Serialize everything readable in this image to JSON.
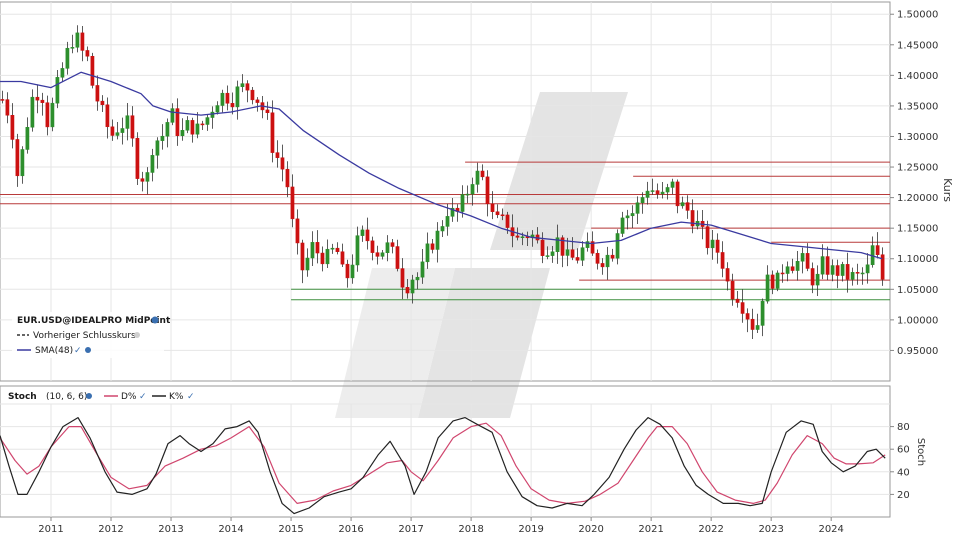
{
  "colors": {
    "up": "#2d8f2d",
    "down": "#cc1111",
    "sma": "#3a3aa0",
    "k": "#222222",
    "d": "#d0466e",
    "red_line": "#b83a3a",
    "green_line": "#3f8f3f",
    "grid": "#e6e6e6"
  },
  "chart_data": [
    {
      "type": "candlestick",
      "instrument": "EUR.USD@IDEALPRO MidPoint",
      "ylabel": "Kurs",
      "ylim": [
        0.9,
        1.52
      ],
      "yticks": [
        "1.50000",
        "1.45000",
        "1.40000",
        "1.35000",
        "1.30000",
        "1.25000",
        "1.20000",
        "1.15000",
        "1.10000",
        "1.05000",
        "1.00000",
        "0.95000"
      ],
      "x_years": [
        "2011",
        "2012",
        "2013",
        "2014",
        "2015",
        "2016",
        "2017",
        "2018",
        "2019",
        "2020",
        "2021",
        "2022",
        "2023",
        "2024"
      ],
      "x_range": [
        2010.15,
        2024.98
      ],
      "legend": [
        {
          "icon": "dash",
          "label": "Vorheriger Schlusskurs"
        },
        {
          "icon": "line",
          "label": "SMA(48)"
        }
      ],
      "close": [
        [
          2010.17,
          1.365
        ],
        [
          2010.33,
          1.33
        ],
        [
          2010.45,
          1.23
        ],
        [
          2010.55,
          1.29
        ],
        [
          2010.67,
          1.36
        ],
        [
          2010.83,
          1.38
        ],
        [
          2010.95,
          1.32
        ],
        [
          2011.1,
          1.38
        ],
        [
          2011.25,
          1.43
        ],
        [
          2011.4,
          1.47
        ],
        [
          2011.5,
          1.44
        ],
        [
          2011.6,
          1.43
        ],
        [
          2011.7,
          1.38
        ],
        [
          2011.85,
          1.34
        ],
        [
          2012.0,
          1.3
        ],
        [
          2012.15,
          1.32
        ],
        [
          2012.3,
          1.32
        ],
        [
          2012.45,
          1.24
        ],
        [
          2012.6,
          1.23
        ],
        [
          2012.7,
          1.29
        ],
        [
          2012.85,
          1.3
        ],
        [
          2013.0,
          1.34
        ],
        [
          2013.15,
          1.3
        ],
        [
          2013.3,
          1.32
        ],
        [
          2013.45,
          1.31
        ],
        [
          2013.6,
          1.33
        ],
        [
          2013.75,
          1.36
        ],
        [
          2013.9,
          1.37
        ],
        [
          2014.0,
          1.36
        ],
        [
          2014.15,
          1.38
        ],
        [
          2014.3,
          1.38
        ],
        [
          2014.45,
          1.36
        ],
        [
          2014.6,
          1.33
        ],
        [
          2014.7,
          1.28
        ],
        [
          2014.85,
          1.25
        ],
        [
          2014.97,
          1.21
        ],
        [
          2015.05,
          1.13
        ],
        [
          2015.2,
          1.08
        ],
        [
          2015.35,
          1.12
        ],
        [
          2015.45,
          1.11
        ],
        [
          2015.6,
          1.1
        ],
        [
          2015.75,
          1.12
        ],
        [
          2015.9,
          1.06
        ],
        [
          2016.0,
          1.09
        ],
        [
          2016.15,
          1.14
        ],
        [
          2016.3,
          1.13
        ],
        [
          2016.45,
          1.11
        ],
        [
          2016.6,
          1.12
        ],
        [
          2016.75,
          1.1
        ],
        [
          2016.9,
          1.05
        ],
        [
          2017.0,
          1.07
        ],
        [
          2017.15,
          1.07
        ],
        [
          2017.3,
          1.12
        ],
        [
          2017.45,
          1.14
        ],
        [
          2017.6,
          1.18
        ],
        [
          2017.75,
          1.17
        ],
        [
          2017.9,
          1.2
        ],
        [
          2018.05,
          1.24
        ],
        [
          2018.2,
          1.23
        ],
        [
          2018.35,
          1.17
        ],
        [
          2018.45,
          1.16
        ],
        [
          2018.6,
          1.16
        ],
        [
          2018.75,
          1.13
        ],
        [
          2018.9,
          1.14
        ],
        [
          2019.0,
          1.14
        ],
        [
          2019.15,
          1.12
        ],
        [
          2019.3,
          1.12
        ],
        [
          2019.45,
          1.13
        ],
        [
          2019.6,
          1.1
        ],
        [
          2019.75,
          1.1
        ],
        [
          2019.9,
          1.12
        ],
        [
          2020.05,
          1.1
        ],
        [
          2020.2,
          1.1
        ],
        [
          2020.35,
          1.11
        ],
        [
          2020.5,
          1.18
        ],
        [
          2020.65,
          1.17
        ],
        [
          2020.8,
          1.19
        ],
        [
          2020.95,
          1.22
        ],
        [
          2021.05,
          1.21
        ],
        [
          2021.2,
          1.2
        ],
        [
          2021.35,
          1.22
        ],
        [
          2021.45,
          1.19
        ],
        [
          2021.6,
          1.18
        ],
        [
          2021.75,
          1.16
        ],
        [
          2021.9,
          1.13
        ],
        [
          2022.0,
          1.12
        ],
        [
          2022.15,
          1.11
        ],
        [
          2022.3,
          1.05
        ],
        [
          2022.45,
          1.04
        ],
        [
          2022.55,
          1.02
        ],
        [
          2022.65,
          1.0
        ],
        [
          2022.75,
          0.98
        ],
        [
          2022.85,
          1.04
        ],
        [
          2022.97,
          1.07
        ],
        [
          2023.1,
          1.06
        ],
        [
          2023.25,
          1.1
        ],
        [
          2023.4,
          1.09
        ],
        [
          2023.5,
          1.1
        ],
        [
          2023.6,
          1.08
        ],
        [
          2023.75,
          1.06
        ],
        [
          2023.85,
          1.09
        ],
        [
          2024.0,
          1.08
        ],
        [
          2024.15,
          1.08
        ],
        [
          2024.3,
          1.07
        ],
        [
          2024.45,
          1.07
        ],
        [
          2024.6,
          1.08
        ],
        [
          2024.7,
          1.12
        ],
        [
          2024.8,
          1.09
        ],
        [
          2024.9,
          1.05
        ]
      ],
      "sma": [
        [
          2010.15,
          1.39
        ],
        [
          2010.5,
          1.39
        ],
        [
          2011.0,
          1.38
        ],
        [
          2011.5,
          1.405
        ],
        [
          2012.0,
          1.39
        ],
        [
          2012.5,
          1.37
        ],
        [
          2012.7,
          1.35
        ],
        [
          2013.0,
          1.34
        ],
        [
          2013.5,
          1.335
        ],
        [
          2014.0,
          1.34
        ],
        [
          2014.5,
          1.35
        ],
        [
          2014.8,
          1.345
        ],
        [
          2015.2,
          1.31
        ],
        [
          2015.8,
          1.27
        ],
        [
          2016.3,
          1.24
        ],
        [
          2016.8,
          1.215
        ],
        [
          2017.4,
          1.19
        ],
        [
          2018.0,
          1.17
        ],
        [
          2018.5,
          1.15
        ],
        [
          2019.0,
          1.135
        ],
        [
          2019.5,
          1.13
        ],
        [
          2020.0,
          1.125
        ],
        [
          2020.5,
          1.13
        ],
        [
          2021.0,
          1.15
        ],
        [
          2021.5,
          1.16
        ],
        [
          2022.0,
          1.155
        ],
        [
          2022.5,
          1.14
        ],
        [
          2023.0,
          1.125
        ],
        [
          2023.5,
          1.12
        ],
        [
          2024.0,
          1.115
        ],
        [
          2024.5,
          1.11
        ],
        [
          2024.85,
          1.1
        ]
      ],
      "hlines_red": [
        {
          "y": 1.258,
          "x0": 2017.9,
          "x1": 2024.98
        },
        {
          "y": 1.235,
          "x0": 2020.7,
          "x1": 2024.98
        },
        {
          "y": 1.205,
          "x0": 2010.15,
          "x1": 2024.98
        },
        {
          "y": 1.19,
          "x0": 2010.15,
          "x1": 2024.98
        },
        {
          "y": 1.15,
          "x0": 2020.0,
          "x1": 2024.98
        },
        {
          "y": 1.127,
          "x0": 2023.0,
          "x1": 2024.98
        },
        {
          "y": 1.065,
          "x0": 2019.8,
          "x1": 2024.98
        }
      ],
      "hlines_green": [
        {
          "y": 1.05,
          "x0": 2015.0,
          "x1": 2024.98
        },
        {
          "y": 1.033,
          "x0": 2015.0,
          "x1": 2024.98
        }
      ]
    },
    {
      "type": "line",
      "indicator": "Stoch",
      "params": "(10, 6, 6)",
      "ylabel": "Stoch",
      "ylim": [
        0,
        100
      ],
      "yticks": [
        "80",
        "60",
        "40",
        "20"
      ],
      "series": [
        {
          "name": "D%",
          "values": [
            [
              2010.15,
              70
            ],
            [
              2010.4,
              50
            ],
            [
              2010.6,
              38
            ],
            [
              2010.8,
              45
            ],
            [
              2011.0,
              62
            ],
            [
              2011.3,
              80
            ],
            [
              2011.5,
              80
            ],
            [
              2011.75,
              57
            ],
            [
              2012.0,
              35
            ],
            [
              2012.3,
              25
            ],
            [
              2012.6,
              28
            ],
            [
              2012.9,
              45
            ],
            [
              2013.2,
              52
            ],
            [
              2013.5,
              60
            ],
            [
              2013.75,
              63
            ],
            [
              2014.0,
              70
            ],
            [
              2014.3,
              80
            ],
            [
              2014.55,
              62
            ],
            [
              2014.8,
              30
            ],
            [
              2015.1,
              12
            ],
            [
              2015.4,
              15
            ],
            [
              2015.7,
              23
            ],
            [
              2016.0,
              28
            ],
            [
              2016.3,
              38
            ],
            [
              2016.6,
              48
            ],
            [
              2016.85,
              50
            ],
            [
              2017.0,
              40
            ],
            [
              2017.2,
              32
            ],
            [
              2017.45,
              50
            ],
            [
              2017.7,
              70
            ],
            [
              2018.0,
              80
            ],
            [
              2018.25,
              83
            ],
            [
              2018.5,
              72
            ],
            [
              2018.75,
              45
            ],
            [
              2019.0,
              25
            ],
            [
              2019.3,
              15
            ],
            [
              2019.6,
              12
            ],
            [
              2019.9,
              14
            ],
            [
              2020.15,
              20
            ],
            [
              2020.45,
              30
            ],
            [
              2020.7,
              50
            ],
            [
              2020.95,
              70
            ],
            [
              2021.1,
              80
            ],
            [
              2021.35,
              80
            ],
            [
              2021.6,
              65
            ],
            [
              2021.85,
              40
            ],
            [
              2022.1,
              22
            ],
            [
              2022.4,
              15
            ],
            [
              2022.7,
              12
            ],
            [
              2022.9,
              15
            ],
            [
              2023.1,
              30
            ],
            [
              2023.35,
              55
            ],
            [
              2023.6,
              72
            ],
            [
              2023.85,
              65
            ],
            [
              2024.05,
              52
            ],
            [
              2024.25,
              47
            ],
            [
              2024.45,
              47
            ],
            [
              2024.7,
              48
            ],
            [
              2024.9,
              55
            ]
          ]
        },
        {
          "name": "K%",
          "values": [
            [
              2010.15,
              72
            ],
            [
              2010.3,
              45
            ],
            [
              2010.45,
              20
            ],
            [
              2010.6,
              20
            ],
            [
              2010.8,
              40
            ],
            [
              2011.0,
              62
            ],
            [
              2011.2,
              80
            ],
            [
              2011.45,
              88
            ],
            [
              2011.65,
              70
            ],
            [
              2011.9,
              40
            ],
            [
              2012.1,
              22
            ],
            [
              2012.35,
              20
            ],
            [
              2012.6,
              25
            ],
            [
              2012.75,
              38
            ],
            [
              2012.95,
              65
            ],
            [
              2013.15,
              72
            ],
            [
              2013.3,
              65
            ],
            [
              2013.5,
              58
            ],
            [
              2013.7,
              65
            ],
            [
              2013.9,
              78
            ],
            [
              2014.1,
              80
            ],
            [
              2014.3,
              85
            ],
            [
              2014.45,
              75
            ],
            [
              2014.65,
              40
            ],
            [
              2014.85,
              12
            ],
            [
              2015.05,
              3
            ],
            [
              2015.3,
              8
            ],
            [
              2015.55,
              18
            ],
            [
              2015.8,
              22
            ],
            [
              2016.0,
              25
            ],
            [
              2016.2,
              35
            ],
            [
              2016.45,
              55
            ],
            [
              2016.65,
              67
            ],
            [
              2016.9,
              45
            ],
            [
              2017.05,
              20
            ],
            [
              2017.25,
              40
            ],
            [
              2017.45,
              70
            ],
            [
              2017.7,
              85
            ],
            [
              2017.9,
              88
            ],
            [
              2018.1,
              82
            ],
            [
              2018.35,
              75
            ],
            [
              2018.6,
              40
            ],
            [
              2018.85,
              18
            ],
            [
              2019.1,
              10
            ],
            [
              2019.35,
              8
            ],
            [
              2019.6,
              12
            ],
            [
              2019.85,
              10
            ],
            [
              2020.05,
              20
            ],
            [
              2020.3,
              35
            ],
            [
              2020.55,
              60
            ],
            [
              2020.75,
              77
            ],
            [
              2020.95,
              88
            ],
            [
              2021.15,
              82
            ],
            [
              2021.35,
              70
            ],
            [
              2021.55,
              45
            ],
            [
              2021.75,
              28
            ],
            [
              2021.95,
              20
            ],
            [
              2022.2,
              12
            ],
            [
              2022.45,
              12
            ],
            [
              2022.65,
              10
            ],
            [
              2022.85,
              12
            ],
            [
              2023.0,
              40
            ],
            [
              2023.25,
              75
            ],
            [
              2023.5,
              85
            ],
            [
              2023.7,
              82
            ],
            [
              2023.85,
              58
            ],
            [
              2024.0,
              48
            ],
            [
              2024.2,
              40
            ],
            [
              2024.4,
              45
            ],
            [
              2024.6,
              58
            ],
            [
              2024.75,
              60
            ],
            [
              2024.9,
              52
            ]
          ]
        }
      ]
    }
  ]
}
